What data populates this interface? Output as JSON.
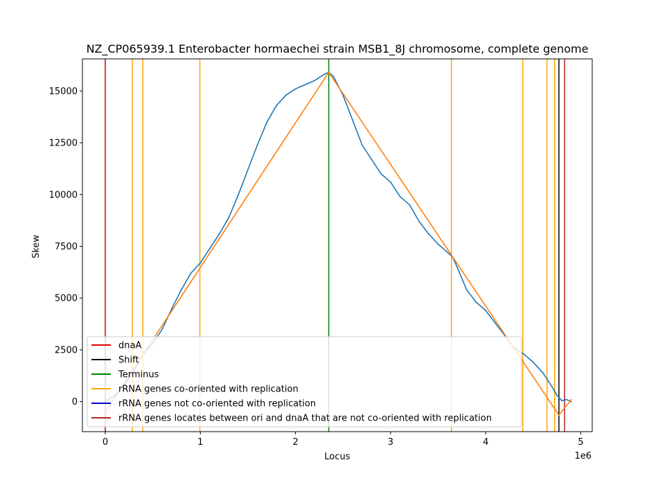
{
  "chart_data": {
    "type": "line",
    "title": "NZ_CP065939.1 Enterobacter hormaechei strain MSB1_8J chromosome, complete genome",
    "xlabel": "Locus",
    "ylabel": "Skew",
    "x_offset_label": "1e6",
    "xlim": [
      -240000,
      5120000
    ],
    "ylim": [
      -1450,
      16550
    ],
    "xticks": [
      0,
      1000000,
      2000000,
      3000000,
      4000000,
      5000000
    ],
    "xtick_labels": [
      "0",
      "1",
      "2",
      "3",
      "4",
      "5"
    ],
    "yticks": [
      0,
      2500,
      5000,
      7500,
      10000,
      12500,
      15000
    ],
    "ytick_labels": [
      "0",
      "2500",
      "5000",
      "7500",
      "10000",
      "12500",
      "15000"
    ],
    "grid": false,
    "legend_position": "lower-left",
    "series": [
      {
        "role": "skew",
        "color": "#1f77b4",
        "x": [
          0,
          100000,
          200000,
          300000,
          400000,
          500000,
          600000,
          700000,
          800000,
          900000,
          1000000,
          1100000,
          1200000,
          1300000,
          1400000,
          1500000,
          1600000,
          1700000,
          1800000,
          1900000,
          2000000,
          2100000,
          2200000,
          2300000,
          2350000,
          2400000,
          2500000,
          2600000,
          2700000,
          2800000,
          2900000,
          3000000,
          3100000,
          3200000,
          3300000,
          3400000,
          3500000,
          3600000,
          3650000,
          3700000,
          3800000,
          3900000,
          4000000,
          4100000,
          4200000,
          4300000,
          4400000,
          4500000,
          4600000,
          4700000,
          4750000,
          4800000,
          4850000,
          4900000
        ],
        "y": [
          0,
          300,
          800,
          1500,
          2300,
          2800,
          3500,
          4500,
          5400,
          6200,
          6700,
          7400,
          8100,
          8900,
          10000,
          11200,
          12400,
          13500,
          14300,
          14800,
          15100,
          15300,
          15500,
          15800,
          15900,
          15700,
          14800,
          13600,
          12400,
          11700,
          11000,
          10600,
          9900,
          9500,
          8700,
          8100,
          7600,
          7200,
          7000,
          6500,
          5400,
          4800,
          4400,
          3800,
          3200,
          2600,
          2300,
          1900,
          1400,
          700,
          300,
          50,
          100,
          0
        ]
      },
      {
        "role": "fit",
        "color": "#ff7f0e",
        "x": [
          0,
          2350000,
          4770000,
          4900000
        ],
        "y": [
          -500,
          15900,
          -650,
          100
        ]
      }
    ],
    "vlines": [
      {
        "x": 0,
        "color": "#dd0000",
        "kind": "dnaA"
      },
      {
        "x": 4770000,
        "color": "#000000",
        "kind": "shift"
      },
      {
        "x": 2350000,
        "color": "#008000",
        "kind": "terminus"
      },
      {
        "x": 285000,
        "color": "#ffa500",
        "kind": "co"
      },
      {
        "x": 395000,
        "color": "#ffa500",
        "kind": "co"
      },
      {
        "x": 995000,
        "color": "#ffa500",
        "kind": "co"
      },
      {
        "x": 3640000,
        "color": "#ffa500",
        "kind": "co"
      },
      {
        "x": 4390000,
        "color": "#ffa500",
        "kind": "co"
      },
      {
        "x": 4645000,
        "color": "#ffa500",
        "kind": "co"
      },
      {
        "x": 4725000,
        "color": "#ffa500",
        "kind": "co"
      },
      {
        "x": 4830000,
        "color": "#b22222",
        "kind": "between"
      }
    ],
    "legend": [
      {
        "label": "dnaA",
        "color": "#dd0000"
      },
      {
        "label": "Shift",
        "color": "#000000"
      },
      {
        "label": "Terminus",
        "color": "#008000"
      },
      {
        "label": "rRNA genes co-oriented with replication",
        "color": "#ffa500"
      },
      {
        "label": "rRNA genes not co-oriented with replication",
        "color": "#0000cd"
      },
      {
        "label": "rRNA genes locates between ori and dnaA that are not co-oriented with replication",
        "color": "#b22222"
      }
    ]
  }
}
